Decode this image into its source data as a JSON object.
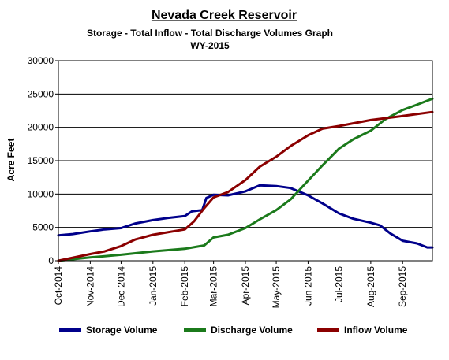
{
  "chart_data": {
    "type": "line",
    "title": "Nevada Creek Reservoir",
    "subtitle": "Storage - Total Inflow - Total Discharge Volumes Graph",
    "subtitle2": "WY-2015",
    "ylabel": "Acre Feet",
    "xlabel": "",
    "ylim": [
      0,
      30000
    ],
    "yticks": [
      "0",
      "5000",
      "10000",
      "15000",
      "20000",
      "25000",
      "30000"
    ],
    "x_ticks": [
      "Oct-2014",
      "Nov-2014",
      "Dec-2014",
      "Jan-2015",
      "Feb-2015",
      "Mar-2015",
      "Apr-2015",
      "May-2015",
      "Jun-2015",
      "Jul-2015",
      "Aug-2015",
      "Sep-2015"
    ],
    "x_range": [
      "2014-10-01",
      "2015-09-30"
    ],
    "grid": "horizontal",
    "legend_position": "bottom",
    "series": [
      {
        "name": "Storage Volume",
        "color": "#00008B",
        "points": [
          [
            "2014-10-01",
            3800
          ],
          [
            "2014-10-15",
            4000
          ],
          [
            "2014-11-01",
            4400
          ],
          [
            "2014-11-15",
            4700
          ],
          [
            "2014-12-01",
            4900
          ],
          [
            "2014-12-15",
            5600
          ],
          [
            "2015-01-01",
            6100
          ],
          [
            "2015-01-15",
            6400
          ],
          [
            "2015-02-01",
            6700
          ],
          [
            "2015-02-08",
            7400
          ],
          [
            "2015-02-18",
            7600
          ],
          [
            "2015-02-22",
            9400
          ],
          [
            "2015-03-01",
            9900
          ],
          [
            "2015-03-15",
            9800
          ],
          [
            "2015-04-01",
            10400
          ],
          [
            "2015-04-15",
            11300
          ],
          [
            "2015-05-01",
            11200
          ],
          [
            "2015-05-15",
            10900
          ],
          [
            "2015-06-01",
            9800
          ],
          [
            "2015-06-15",
            8600
          ],
          [
            "2015-07-01",
            7100
          ],
          [
            "2015-07-15",
            6300
          ],
          [
            "2015-08-01",
            5700
          ],
          [
            "2015-08-10",
            5300
          ],
          [
            "2015-08-20",
            4100
          ],
          [
            "2015-09-01",
            3000
          ],
          [
            "2015-09-15",
            2600
          ],
          [
            "2015-09-25",
            2000
          ],
          [
            "2015-09-30",
            2000
          ]
        ]
      },
      {
        "name": "Discharge Volume",
        "color": "#1B7A1B",
        "points": [
          [
            "2014-10-01",
            0
          ],
          [
            "2014-11-01",
            500
          ],
          [
            "2014-12-01",
            900
          ],
          [
            "2015-01-01",
            1400
          ],
          [
            "2015-02-01",
            1800
          ],
          [
            "2015-02-20",
            2300
          ],
          [
            "2015-03-01",
            3500
          ],
          [
            "2015-03-15",
            3900
          ],
          [
            "2015-04-01",
            4900
          ],
          [
            "2015-04-15",
            6200
          ],
          [
            "2015-05-01",
            7600
          ],
          [
            "2015-05-15",
            9200
          ],
          [
            "2015-06-01",
            12000
          ],
          [
            "2015-06-15",
            14300
          ],
          [
            "2015-07-01",
            16800
          ],
          [
            "2015-07-15",
            18200
          ],
          [
            "2015-08-01",
            19500
          ],
          [
            "2015-08-15",
            21200
          ],
          [
            "2015-09-01",
            22600
          ],
          [
            "2015-09-15",
            23400
          ],
          [
            "2015-09-30",
            24300
          ]
        ]
      },
      {
        "name": "Inflow Volume",
        "color": "#8B0000",
        "points": [
          [
            "2014-10-01",
            0
          ],
          [
            "2014-11-01",
            1000
          ],
          [
            "2014-11-15",
            1400
          ],
          [
            "2014-12-01",
            2200
          ],
          [
            "2014-12-15",
            3200
          ],
          [
            "2015-01-01",
            3900
          ],
          [
            "2015-02-01",
            4700
          ],
          [
            "2015-02-10",
            5900
          ],
          [
            "2015-02-20",
            7900
          ],
          [
            "2015-03-01",
            9500
          ],
          [
            "2015-03-15",
            10300
          ],
          [
            "2015-04-01",
            12100
          ],
          [
            "2015-04-15",
            14100
          ],
          [
            "2015-05-01",
            15600
          ],
          [
            "2015-05-15",
            17200
          ],
          [
            "2015-06-01",
            18800
          ],
          [
            "2015-06-15",
            19800
          ],
          [
            "2015-07-01",
            20200
          ],
          [
            "2015-08-01",
            21100
          ],
          [
            "2015-09-01",
            21700
          ],
          [
            "2015-09-30",
            22300
          ]
        ]
      }
    ]
  }
}
